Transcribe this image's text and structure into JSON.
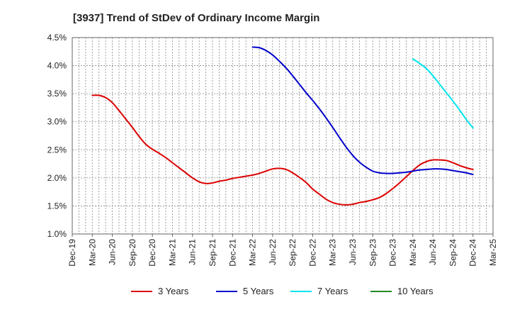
{
  "chart_data": {
    "type": "line",
    "title": "[3937]  Trend of StDev of Ordinary Income Margin",
    "xlabel": "",
    "ylabel": "",
    "ylim": [
      1.0,
      4.5
    ],
    "yticks": [
      "1.0%",
      "1.5%",
      "2.0%",
      "2.5%",
      "3.0%",
      "3.5%",
      "4.0%",
      "4.5%"
    ],
    "xticks": [
      "Dec-19",
      "Mar-20",
      "Jun-20",
      "Sep-20",
      "Dec-20",
      "Mar-21",
      "Jun-21",
      "Sep-21",
      "Dec-21",
      "Mar-22",
      "Jun-22",
      "Sep-22",
      "Dec-22",
      "Mar-23",
      "Jun-23",
      "Sep-23",
      "Dec-23",
      "Mar-24",
      "Jun-24",
      "Sep-24",
      "Dec-24",
      "Mar-25"
    ],
    "grid": true,
    "legend_position": "bottom",
    "series": [
      {
        "name": "3 Years",
        "color": "#dd0000",
        "x": [
          "Mar-20",
          "Apr-20",
          "May-20",
          "Jun-20",
          "Jul-20",
          "Aug-20",
          "Sep-20",
          "Oct-20",
          "Nov-20",
          "Dec-20",
          "Jan-21",
          "Feb-21",
          "Mar-21",
          "Apr-21",
          "May-21",
          "Jun-21",
          "Jul-21",
          "Aug-21",
          "Sep-21",
          "Oct-21",
          "Nov-21",
          "Dec-21",
          "Jan-22",
          "Feb-22",
          "Mar-22",
          "Apr-22",
          "May-22",
          "Jun-22",
          "Jul-22",
          "Aug-22",
          "Sep-22",
          "Oct-22",
          "Nov-22",
          "Dec-22",
          "Jan-23",
          "Feb-23",
          "Mar-23",
          "Apr-23",
          "May-23",
          "Jun-23",
          "Jul-23",
          "Aug-23",
          "Sep-23",
          "Oct-23",
          "Nov-23",
          "Dec-23",
          "Jan-24",
          "Feb-24",
          "Mar-24",
          "Apr-24",
          "May-24",
          "Jun-24",
          "Jul-24",
          "Aug-24",
          "Sep-24",
          "Oct-24",
          "Nov-24",
          "Dec-24"
        ],
        "values": [
          3.47,
          3.47,
          3.43,
          3.34,
          3.2,
          3.05,
          2.9,
          2.74,
          2.6,
          2.51,
          2.44,
          2.36,
          2.27,
          2.18,
          2.09,
          2.0,
          1.93,
          1.9,
          1.91,
          1.94,
          1.96,
          1.99,
          2.01,
          2.03,
          2.05,
          2.08,
          2.12,
          2.16,
          2.17,
          2.15,
          2.09,
          2.01,
          1.92,
          1.8,
          1.71,
          1.62,
          1.56,
          1.53,
          1.52,
          1.53,
          1.56,
          1.58,
          1.61,
          1.65,
          1.72,
          1.81,
          1.91,
          2.02,
          2.13,
          2.23,
          2.29,
          2.32,
          2.32,
          2.31,
          2.27,
          2.22,
          2.18,
          2.15
        ]
      },
      {
        "name": "5 Years",
        "color": "#0000cc",
        "x": [
          "Mar-22",
          "Apr-22",
          "May-22",
          "Jun-22",
          "Jul-22",
          "Aug-22",
          "Sep-22",
          "Oct-22",
          "Nov-22",
          "Dec-22",
          "Jan-23",
          "Feb-23",
          "Mar-23",
          "Apr-23",
          "May-23",
          "Jun-23",
          "Jul-23",
          "Aug-23",
          "Sep-23",
          "Oct-23",
          "Nov-23",
          "Dec-23",
          "Jan-24",
          "Feb-24",
          "Mar-24",
          "Apr-24",
          "May-24",
          "Jun-24",
          "Jul-24",
          "Aug-24",
          "Sep-24",
          "Oct-24",
          "Nov-24",
          "Dec-24"
        ],
        "values": [
          4.33,
          4.32,
          4.27,
          4.19,
          4.08,
          3.96,
          3.82,
          3.67,
          3.52,
          3.38,
          3.23,
          3.07,
          2.9,
          2.72,
          2.55,
          2.4,
          2.28,
          2.19,
          2.12,
          2.09,
          2.08,
          2.08,
          2.09,
          2.1,
          2.12,
          2.14,
          2.15,
          2.16,
          2.16,
          2.15,
          2.13,
          2.11,
          2.09,
          2.06
        ]
      },
      {
        "name": "7 Years",
        "color": "#00e5ee",
        "x": [
          "Mar-24",
          "Apr-24",
          "May-24",
          "Jun-24",
          "Jul-24",
          "Aug-24",
          "Sep-24",
          "Oct-24",
          "Nov-24",
          "Dec-24"
        ],
        "values": [
          4.12,
          4.04,
          3.95,
          3.82,
          3.67,
          3.52,
          3.37,
          3.21,
          3.04,
          2.89
        ]
      },
      {
        "name": "10 Years",
        "color": "#228b22",
        "x": [],
        "values": []
      }
    ]
  }
}
